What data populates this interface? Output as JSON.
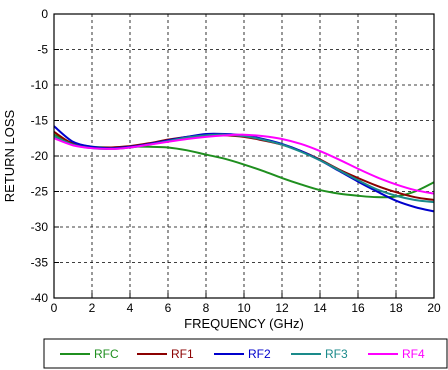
{
  "chart_data": {
    "type": "line",
    "title": "",
    "xlabel": "FREQUENCY (GHz)",
    "ylabel": "RETURN LOSS",
    "xlim": [
      0,
      20
    ],
    "ylim": [
      -40,
      0
    ],
    "grid": true,
    "legend_position": "bottom",
    "x_ticks": [
      "0",
      "2",
      "4",
      "6",
      "8",
      "10",
      "12",
      "14",
      "16",
      "18",
      "20"
    ],
    "y_ticks": [
      "0",
      "-5",
      "-10",
      "-15",
      "-20",
      "-25",
      "-30",
      "-35",
      "-40"
    ],
    "x": [
      0,
      1,
      2,
      3,
      4,
      5,
      6,
      7,
      8,
      9,
      10,
      11,
      12,
      13,
      14,
      15,
      16,
      17,
      18,
      19,
      20
    ],
    "series": [
      {
        "name": "RFC",
        "color": "#1f8f1f",
        "values": [
          -17,
          -18.2,
          -18.7,
          -18.8,
          -18.7,
          -18.7,
          -18.8,
          -19.2,
          -19.8,
          -20.4,
          -21.2,
          -22.1,
          -23.1,
          -24.0,
          -24.8,
          -25.3,
          -25.6,
          -25.8,
          -25.7,
          -25.0,
          -23.7
        ]
      },
      {
        "name": "RF1",
        "color": "#8b0000",
        "values": [
          -16.6,
          -18.3,
          -18.8,
          -18.8,
          -18.6,
          -18.2,
          -17.7,
          -17.3,
          -17.1,
          -17.1,
          -17.3,
          -17.8,
          -18.4,
          -19.3,
          -20.5,
          -21.9,
          -23.1,
          -24.2,
          -25.1,
          -25.8,
          -26.2
        ]
      },
      {
        "name": "RF2",
        "color": "#0000cc",
        "values": [
          -15.8,
          -18.0,
          -18.7,
          -18.9,
          -18.7,
          -18.3,
          -17.8,
          -17.3,
          -16.9,
          -16.9,
          -17.1,
          -17.6,
          -18.3,
          -19.3,
          -20.6,
          -22.1,
          -23.6,
          -25.0,
          -26.3,
          -27.2,
          -27.8
        ]
      },
      {
        "name": "RF3",
        "color": "#1a8a8a",
        "values": [
          -17.2,
          -18.4,
          -18.9,
          -19.0,
          -18.8,
          -18.4,
          -17.9,
          -17.4,
          -17.1,
          -17.0,
          -17.2,
          -17.7,
          -18.4,
          -19.4,
          -20.6,
          -22.0,
          -23.4,
          -24.7,
          -25.6,
          -26.2,
          -26.5
        ]
      },
      {
        "name": "RF4",
        "color": "#ff00ff",
        "values": [
          -17.5,
          -18.5,
          -18.9,
          -19.0,
          -18.8,
          -18.4,
          -18.0,
          -17.6,
          -17.3,
          -17.1,
          -17.0,
          -17.2,
          -17.6,
          -18.3,
          -19.3,
          -20.5,
          -21.8,
          -23.0,
          -24.0,
          -24.8,
          -25.3
        ]
      }
    ]
  }
}
